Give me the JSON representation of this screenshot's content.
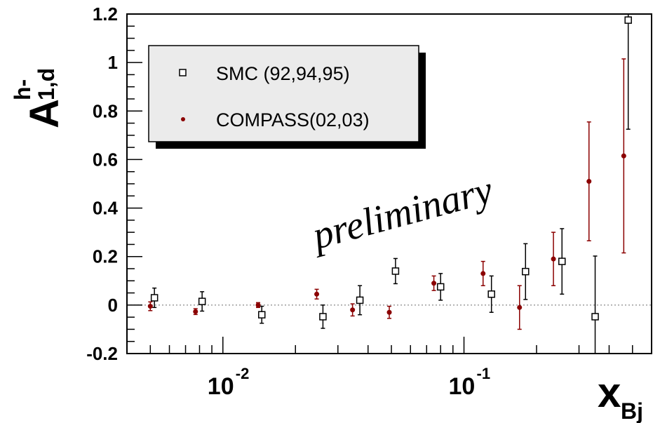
{
  "chart_data": {
    "type": "scatter",
    "x_scale": "log",
    "xlim": [
      0.004,
      0.6
    ],
    "ylim": [
      -0.2,
      1.2
    ],
    "grid": false,
    "zero_line": true,
    "ylabel": {
      "main": "A",
      "sup": "h-",
      "sub": "1,d"
    },
    "xlabel": {
      "main": "x",
      "sub": "Bj"
    },
    "yticks": [
      {
        "value": -0.2,
        "label": "-0.2"
      },
      {
        "value": 0,
        "label": "0"
      },
      {
        "value": 0.2,
        "label": "0.2"
      },
      {
        "value": 0.4,
        "label": "0.4"
      },
      {
        "value": 0.6,
        "label": "0.6"
      },
      {
        "value": 0.8,
        "label": "0.8"
      },
      {
        "value": 1.0,
        "label": "1"
      },
      {
        "value": 1.2,
        "label": "1.2"
      }
    ],
    "xticks": [
      {
        "value": 0.01,
        "base": "10",
        "exp": "-2"
      },
      {
        "value": 0.1,
        "base": "10",
        "exp": "-1"
      }
    ],
    "legend_position": "top-left",
    "annotation": "preliminary",
    "series": [
      {
        "name": "SMC (92,94,95)",
        "marker": "open-square",
        "color": "#000000",
        "points": [
          {
            "x": 0.0052,
            "y": 0.03,
            "err": 0.04
          },
          {
            "x": 0.0082,
            "y": 0.015,
            "err": 0.04
          },
          {
            "x": 0.0145,
            "y": -0.04,
            "err": 0.035
          },
          {
            "x": 0.026,
            "y": -0.048,
            "err": 0.048
          },
          {
            "x": 0.037,
            "y": 0.02,
            "err": 0.06
          },
          {
            "x": 0.052,
            "y": 0.14,
            "err": 0.052
          },
          {
            "x": 0.08,
            "y": 0.075,
            "err": 0.055
          },
          {
            "x": 0.13,
            "y": 0.045,
            "err": 0.075
          },
          {
            "x": 0.18,
            "y": 0.138,
            "err": 0.115
          },
          {
            "x": 0.255,
            "y": 0.18,
            "err": 0.135
          },
          {
            "x": 0.35,
            "y": -0.048,
            "err": 0.25
          },
          {
            "x": 0.48,
            "y": 1.175,
            "err": 0.45
          }
        ]
      },
      {
        "name": "COMPASS(02,03)",
        "marker": "filled-circle",
        "color": "#8b0000",
        "points": [
          {
            "x": 0.005,
            "y": -0.005,
            "err": 0.018
          },
          {
            "x": 0.0077,
            "y": -0.027,
            "err": 0.012
          },
          {
            "x": 0.014,
            "y": 0.0,
            "err": 0.01
          },
          {
            "x": 0.0245,
            "y": 0.045,
            "err": 0.02
          },
          {
            "x": 0.0345,
            "y": -0.02,
            "err": 0.025
          },
          {
            "x": 0.049,
            "y": -0.03,
            "err": 0.025
          },
          {
            "x": 0.075,
            "y": 0.09,
            "err": 0.03
          },
          {
            "x": 0.12,
            "y": 0.13,
            "err": 0.05
          },
          {
            "x": 0.17,
            "y": -0.01,
            "err": 0.09
          },
          {
            "x": 0.235,
            "y": 0.19,
            "err": 0.11
          },
          {
            "x": 0.33,
            "y": 0.51,
            "err": 0.245
          },
          {
            "x": 0.46,
            "y": 0.615,
            "err": 0.4
          }
        ]
      }
    ]
  }
}
